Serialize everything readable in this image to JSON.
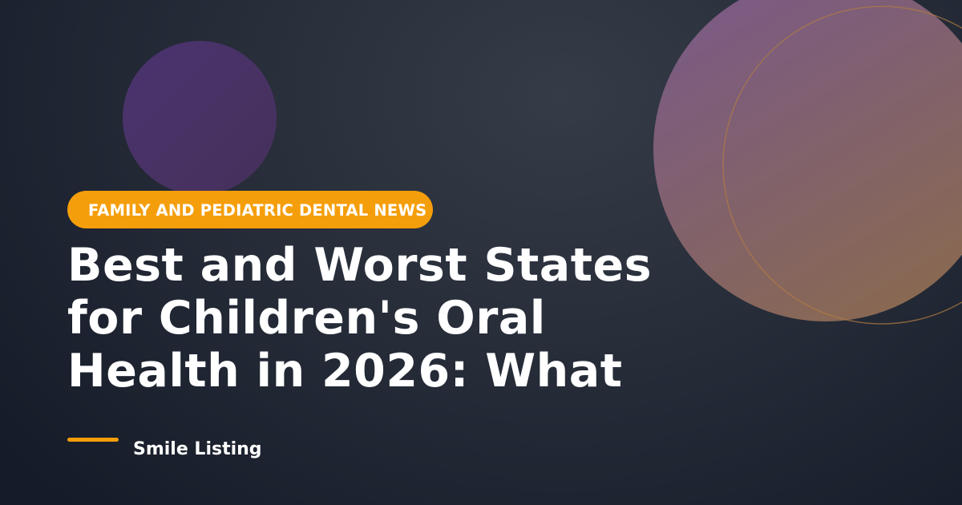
{
  "category": "FAMILY AND PEDIATRIC DENTAL NEWS",
  "title_lines": [
    "Best and Worst States",
    "for Children's Oral",
    "Health in 2026: What"
  ],
  "author": "Smile Listing"
}
